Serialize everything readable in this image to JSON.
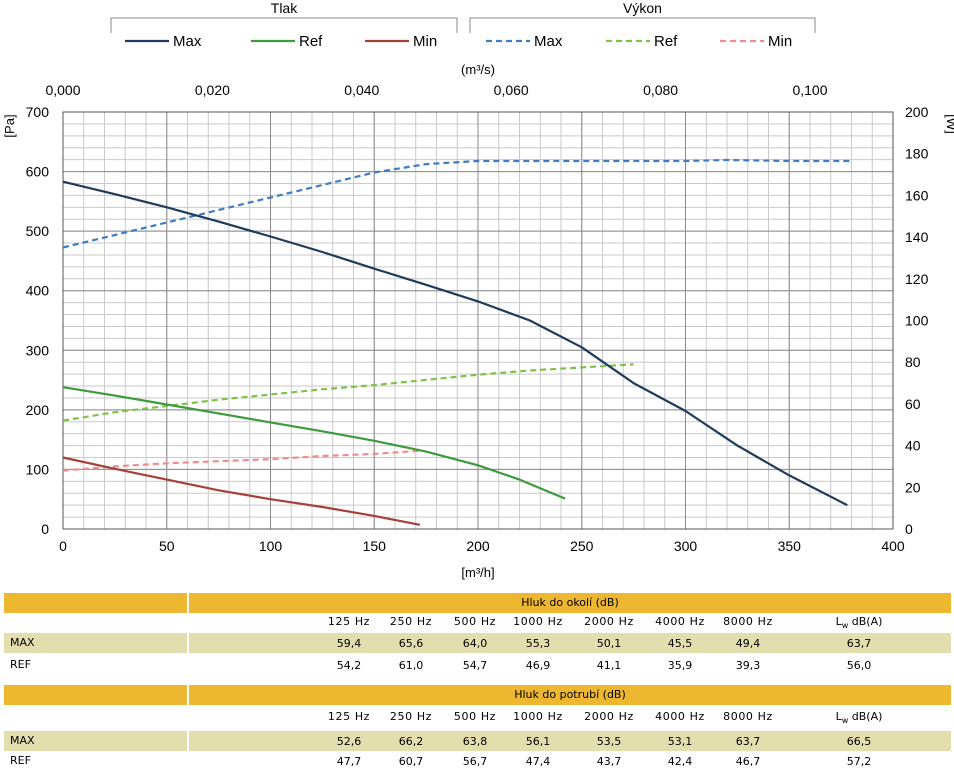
{
  "chart_data": {
    "type": "line",
    "legend": {
      "groups": [
        {
          "title": "Tlak",
          "entries": [
            {
              "name": "Max",
              "color": "#1F3B5C",
              "dash": false
            },
            {
              "name": "Ref",
              "color": "#3E9A3E",
              "dash": false
            },
            {
              "name": "Min",
              "color": "#A4423A",
              "dash": false
            }
          ]
        },
        {
          "title": "Výkon",
          "entries": [
            {
              "name": "Max",
              "color": "#3F7CC4",
              "dash": true
            },
            {
              "name": "Ref",
              "color": "#7EC24A",
              "dash": true
            },
            {
              "name": "Min",
              "color": "#EF8C8C",
              "dash": true
            }
          ]
        }
      ]
    },
    "xlabel": "[m³/h]",
    "xlim": [
      0,
      400
    ],
    "x_ticks": [
      "0",
      "50",
      "100",
      "150",
      "200",
      "250",
      "300",
      "350",
      "400"
    ],
    "x2label": "(m³/s)",
    "x2lim": [
      0,
      0.111111
    ],
    "x2_ticks": [
      {
        "v": 0.0,
        "label": "0,000"
      },
      {
        "v": 0.02,
        "label": "0,020"
      },
      {
        "v": 0.04,
        "label": "0,040"
      },
      {
        "v": 0.06,
        "label": "0,060"
      },
      {
        "v": 0.08,
        "label": "0,080"
      },
      {
        "v": 0.1,
        "label": "0,100"
      }
    ],
    "ylabel": "[Pa]",
    "ylim": [
      0,
      700
    ],
    "y_ticks": [
      "0",
      "100",
      "200",
      "300",
      "400",
      "500",
      "600",
      "700"
    ],
    "y2label": "[W]",
    "y2lim": [
      0,
      200
    ],
    "y2_ticks": [
      "0",
      "20",
      "40",
      "60",
      "80",
      "100",
      "120",
      "140",
      "160",
      "180",
      "200"
    ],
    "grid": true,
    "series": [
      {
        "name": "Max",
        "group": "Tlak",
        "axis": "left",
        "color": "#1F3B5C",
        "dash": false,
        "points": [
          [
            0,
            583
          ],
          [
            25,
            562
          ],
          [
            50,
            540
          ],
          [
            75,
            516
          ],
          [
            100,
            491
          ],
          [
            125,
            465
          ],
          [
            150,
            437
          ],
          [
            175,
            410
          ],
          [
            200,
            382
          ],
          [
            225,
            350
          ],
          [
            250,
            305
          ],
          [
            275,
            245
          ],
          [
            300,
            198
          ],
          [
            325,
            140
          ],
          [
            350,
            90
          ],
          [
            378,
            40
          ]
        ]
      },
      {
        "name": "Ref",
        "group": "Tlak",
        "axis": "left",
        "color": "#3E9A3E",
        "dash": false,
        "points": [
          [
            0,
            238
          ],
          [
            25,
            224
          ],
          [
            50,
            209
          ],
          [
            75,
            194
          ],
          [
            100,
            179
          ],
          [
            125,
            164
          ],
          [
            150,
            148
          ],
          [
            175,
            130
          ],
          [
            200,
            107
          ],
          [
            220,
            83
          ],
          [
            242,
            51
          ]
        ]
      },
      {
        "name": "Min",
        "group": "Tlak",
        "axis": "left",
        "color": "#A4423A",
        "dash": false,
        "points": [
          [
            0,
            120
          ],
          [
            25,
            101
          ],
          [
            50,
            83
          ],
          [
            75,
            65
          ],
          [
            100,
            50
          ],
          [
            125,
            37
          ],
          [
            150,
            22
          ],
          [
            172,
            7
          ]
        ]
      },
      {
        "name": "Max",
        "group": "Výkon",
        "axis": "right",
        "color": "#3F7CC4",
        "dash": true,
        "points": [
          [
            0,
            135
          ],
          [
            25,
            141
          ],
          [
            50,
            147
          ],
          [
            75,
            153
          ],
          [
            100,
            159
          ],
          [
            125,
            165
          ],
          [
            150,
            171
          ],
          [
            175,
            175
          ],
          [
            200,
            176.5
          ],
          [
            250,
            176.5
          ],
          [
            300,
            176.5
          ],
          [
            320,
            177
          ],
          [
            350,
            176.5
          ],
          [
            380,
            176.5
          ]
        ]
      },
      {
        "name": "Ref",
        "group": "Výkon",
        "axis": "right",
        "color": "#7EC24A",
        "dash": true,
        "points": [
          [
            0,
            52
          ],
          [
            25,
            56
          ],
          [
            50,
            59
          ],
          [
            75,
            62
          ],
          [
            100,
            64.5
          ],
          [
            125,
            67
          ],
          [
            150,
            69
          ],
          [
            175,
            71.5
          ],
          [
            200,
            74
          ],
          [
            225,
            76
          ],
          [
            250,
            77.5
          ],
          [
            275,
            79
          ]
        ]
      },
      {
        "name": "Min",
        "group": "Výkon",
        "axis": "right",
        "color": "#EF8C8C",
        "dash": true,
        "points": [
          [
            0,
            28
          ],
          [
            25,
            30
          ],
          [
            50,
            31.5
          ],
          [
            75,
            32.5
          ],
          [
            100,
            33.5
          ],
          [
            125,
            35
          ],
          [
            150,
            36
          ],
          [
            172,
            37.5
          ]
        ]
      }
    ]
  },
  "noise_tables": [
    {
      "title": "Hluk do okolí (dB)",
      "freq_labels": [
        "125 Hz",
        "250 Hz",
        "500 Hz",
        "1000 Hz",
        "2000 Hz",
        "4000 Hz",
        "8000 Hz"
      ],
      "lw_label": {
        "base": "L",
        "sub": "w",
        "rest": " dB(A)"
      },
      "rows": [
        {
          "name": "MAX",
          "shade": true,
          "values": [
            "59,4",
            "65,6",
            "64,0",
            "55,3",
            "50,1",
            "45,5",
            "49,4",
            "63,7"
          ]
        },
        {
          "name": "REF",
          "shade": false,
          "values": [
            "54,2",
            "61,0",
            "54,7",
            "46,9",
            "41,1",
            "35,9",
            "39,3",
            "56,0"
          ]
        }
      ]
    },
    {
      "title": "Hluk do potrubí (dB)",
      "freq_labels": [
        "125 Hz",
        "250 Hz",
        "500 Hz",
        "1000 Hz",
        "2000 Hz",
        "4000 Hz",
        "8000 Hz"
      ],
      "lw_label": {
        "base": "L",
        "sub": "w",
        "rest": " dB(A)"
      },
      "rows": [
        {
          "name": "MAX",
          "shade": true,
          "values": [
            "52,6",
            "66,2",
            "63,8",
            "56,1",
            "53,5",
            "53,1",
            "63,7",
            "66,5"
          ]
        },
        {
          "name": "REF",
          "shade": false,
          "values": [
            "47,7",
            "60,7",
            "56,7",
            "47,4",
            "43,7",
            "42,4",
            "46,7",
            "57,2"
          ]
        }
      ]
    }
  ]
}
